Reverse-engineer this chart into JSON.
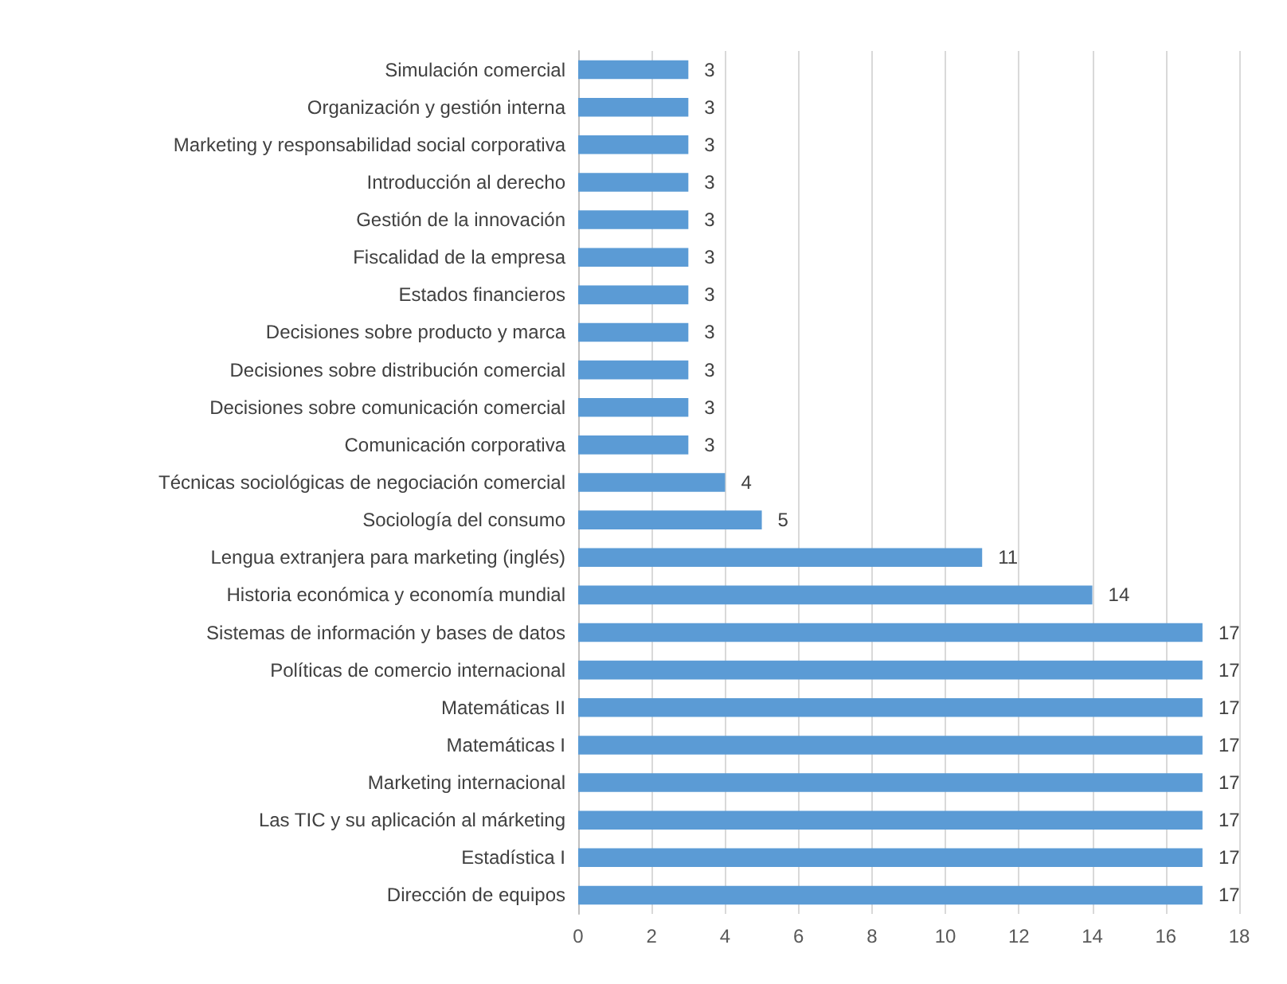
{
  "chart_data": {
    "type": "bar",
    "orientation": "horizontal",
    "categories": [
      "Simulación comercial",
      "Organización y gestión interna",
      "Marketing y responsabilidad social corporativa",
      "Introducción al derecho",
      "Gestión de la innovación",
      "Fiscalidad de la empresa",
      "Estados financieros",
      "Decisiones sobre producto y marca",
      "Decisiones sobre distribución comercial",
      "Decisiones sobre comunicación comercial",
      "Comunicación corporativa",
      "Técnicas sociológicas de negociación comercial",
      "Sociología del consumo",
      "Lengua extranjera para marketing (inglés)",
      "Historia económica y economía mundial",
      "Sistemas de información y bases de datos",
      "Políticas de comercio internacional",
      "Matemáticas II",
      "Matemáticas I",
      "Marketing internacional",
      "Las TIC y su aplicación al márketing",
      "Estadística I",
      "Dirección de equipos"
    ],
    "values": [
      3,
      3,
      3,
      3,
      3,
      3,
      3,
      3,
      3,
      3,
      3,
      4,
      5,
      11,
      14,
      17,
      17,
      17,
      17,
      17,
      17,
      17,
      17
    ],
    "color": "#5b9bd5",
    "xlim": [
      0,
      18
    ],
    "xticks": [
      0,
      2,
      4,
      6,
      8,
      10,
      12,
      14,
      16,
      18
    ],
    "grid": "x",
    "data_labels": true
  }
}
